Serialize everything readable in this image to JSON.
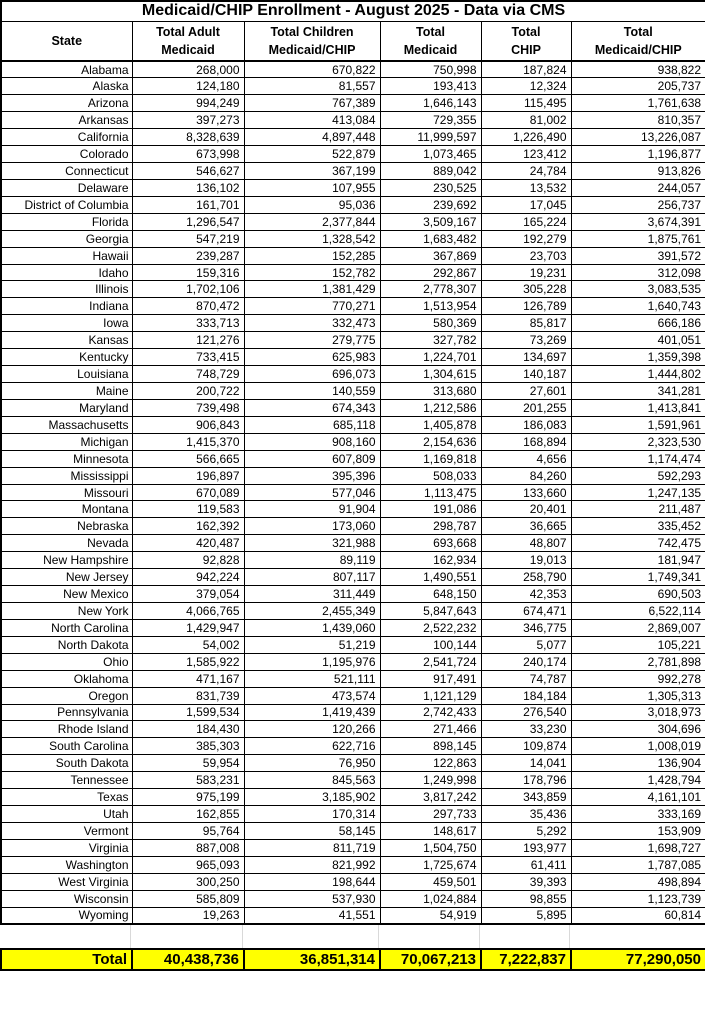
{
  "title": "Medicaid/CHIP Enrollment - August 2025 - Data via CMS",
  "colors": {
    "total_row_bg": "#FFFF00",
    "border": "#000000",
    "gap_gridline": "#d9d9d9"
  },
  "chart_data": {
    "type": "table",
    "title": "Medicaid/CHIP Enrollment - August 2025 - Data via CMS",
    "columns": [
      "State",
      "Total Adult Medicaid",
      "Total Children Medicaid/CHIP",
      "Total Medicaid",
      "Total CHIP",
      "Total Medicaid/CHIP"
    ],
    "header_lines": [
      "State",
      "Total Adult\nMedicaid",
      "Total Children\nMedicaid/CHIP",
      "Total\nMedicaid",
      "Total\nCHIP",
      "Total\nMedicaid/CHIP"
    ],
    "rows": [
      [
        "Alabama",
        "268,000",
        "670,822",
        "750,998",
        "187,824",
        "938,822"
      ],
      [
        "Alaska",
        "124,180",
        "81,557",
        "193,413",
        "12,324",
        "205,737"
      ],
      [
        "Arizona",
        "994,249",
        "767,389",
        "1,646,143",
        "115,495",
        "1,761,638"
      ],
      [
        "Arkansas",
        "397,273",
        "413,084",
        "729,355",
        "81,002",
        "810,357"
      ],
      [
        "California",
        "8,328,639",
        "4,897,448",
        "11,999,597",
        "1,226,490",
        "13,226,087"
      ],
      [
        "Colorado",
        "673,998",
        "522,879",
        "1,073,465",
        "123,412",
        "1,196,877"
      ],
      [
        "Connecticut",
        "546,627",
        "367,199",
        "889,042",
        "24,784",
        "913,826"
      ],
      [
        "Delaware",
        "136,102",
        "107,955",
        "230,525",
        "13,532",
        "244,057"
      ],
      [
        "District of Columbia",
        "161,701",
        "95,036",
        "239,692",
        "17,045",
        "256,737"
      ],
      [
        "Florida",
        "1,296,547",
        "2,377,844",
        "3,509,167",
        "165,224",
        "3,674,391"
      ],
      [
        "Georgia",
        "547,219",
        "1,328,542",
        "1,683,482",
        "192,279",
        "1,875,761"
      ],
      [
        "Hawaii",
        "239,287",
        "152,285",
        "367,869",
        "23,703",
        "391,572"
      ],
      [
        "Idaho",
        "159,316",
        "152,782",
        "292,867",
        "19,231",
        "312,098"
      ],
      [
        "Illinois",
        "1,702,106",
        "1,381,429",
        "2,778,307",
        "305,228",
        "3,083,535"
      ],
      [
        "Indiana",
        "870,472",
        "770,271",
        "1,513,954",
        "126,789",
        "1,640,743"
      ],
      [
        "Iowa",
        "333,713",
        "332,473",
        "580,369",
        "85,817",
        "666,186"
      ],
      [
        "Kansas",
        "121,276",
        "279,775",
        "327,782",
        "73,269",
        "401,051"
      ],
      [
        "Kentucky",
        "733,415",
        "625,983",
        "1,224,701",
        "134,697",
        "1,359,398"
      ],
      [
        "Louisiana",
        "748,729",
        "696,073",
        "1,304,615",
        "140,187",
        "1,444,802"
      ],
      [
        "Maine",
        "200,722",
        "140,559",
        "313,680",
        "27,601",
        "341,281"
      ],
      [
        "Maryland",
        "739,498",
        "674,343",
        "1,212,586",
        "201,255",
        "1,413,841"
      ],
      [
        "Massachusetts",
        "906,843",
        "685,118",
        "1,405,878",
        "186,083",
        "1,591,961"
      ],
      [
        "Michigan",
        "1,415,370",
        "908,160",
        "2,154,636",
        "168,894",
        "2,323,530"
      ],
      [
        "Minnesota",
        "566,665",
        "607,809",
        "1,169,818",
        "4,656",
        "1,174,474"
      ],
      [
        "Mississippi",
        "196,897",
        "395,396",
        "508,033",
        "84,260",
        "592,293"
      ],
      [
        "Missouri",
        "670,089",
        "577,046",
        "1,113,475",
        "133,660",
        "1,247,135"
      ],
      [
        "Montana",
        "119,583",
        "91,904",
        "191,086",
        "20,401",
        "211,487"
      ],
      [
        "Nebraska",
        "162,392",
        "173,060",
        "298,787",
        "36,665",
        "335,452"
      ],
      [
        "Nevada",
        "420,487",
        "321,988",
        "693,668",
        "48,807",
        "742,475"
      ],
      [
        "New Hampshire",
        "92,828",
        "89,119",
        "162,934",
        "19,013",
        "181,947"
      ],
      [
        "New Jersey",
        "942,224",
        "807,117",
        "1,490,551",
        "258,790",
        "1,749,341"
      ],
      [
        "New Mexico",
        "379,054",
        "311,449",
        "648,150",
        "42,353",
        "690,503"
      ],
      [
        "New York",
        "4,066,765",
        "2,455,349",
        "5,847,643",
        "674,471",
        "6,522,114"
      ],
      [
        "North Carolina",
        "1,429,947",
        "1,439,060",
        "2,522,232",
        "346,775",
        "2,869,007"
      ],
      [
        "North Dakota",
        "54,002",
        "51,219",
        "100,144",
        "5,077",
        "105,221"
      ],
      [
        "Ohio",
        "1,585,922",
        "1,195,976",
        "2,541,724",
        "240,174",
        "2,781,898"
      ],
      [
        "Oklahoma",
        "471,167",
        "521,111",
        "917,491",
        "74,787",
        "992,278"
      ],
      [
        "Oregon",
        "831,739",
        "473,574",
        "1,121,129",
        "184,184",
        "1,305,313"
      ],
      [
        "Pennsylvania",
        "1,599,534",
        "1,419,439",
        "2,742,433",
        "276,540",
        "3,018,973"
      ],
      [
        "Rhode Island",
        "184,430",
        "120,266",
        "271,466",
        "33,230",
        "304,696"
      ],
      [
        "South Carolina",
        "385,303",
        "622,716",
        "898,145",
        "109,874",
        "1,008,019"
      ],
      [
        "South Dakota",
        "59,954",
        "76,950",
        "122,863",
        "14,041",
        "136,904"
      ],
      [
        "Tennessee",
        "583,231",
        "845,563",
        "1,249,998",
        "178,796",
        "1,428,794"
      ],
      [
        "Texas",
        "975,199",
        "3,185,902",
        "3,817,242",
        "343,859",
        "4,161,101"
      ],
      [
        "Utah",
        "162,855",
        "170,314",
        "297,733",
        "35,436",
        "333,169"
      ],
      [
        "Vermont",
        "95,764",
        "58,145",
        "148,617",
        "5,292",
        "153,909"
      ],
      [
        "Virginia",
        "887,008",
        "811,719",
        "1,504,750",
        "193,977",
        "1,698,727"
      ],
      [
        "Washington",
        "965,093",
        "821,992",
        "1,725,674",
        "61,411",
        "1,787,085"
      ],
      [
        "West Virginia",
        "300,250",
        "198,644",
        "459,501",
        "39,393",
        "498,894"
      ],
      [
        "Wisconsin",
        "585,809",
        "537,930",
        "1,024,884",
        "98,855",
        "1,123,739"
      ],
      [
        "Wyoming",
        "19,263",
        "41,551",
        "54,919",
        "5,895",
        "60,814"
      ]
    ],
    "total_row": [
      "Total",
      "40,438,736",
      "36,851,314",
      "70,067,213",
      "7,222,837",
      "77,290,050"
    ]
  }
}
